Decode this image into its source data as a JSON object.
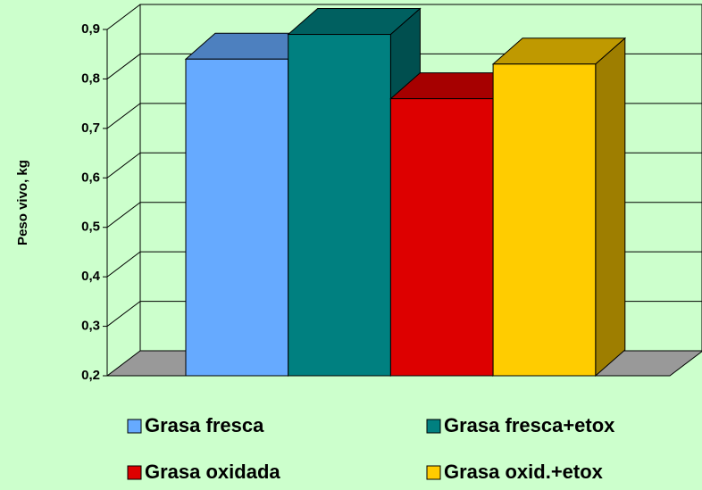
{
  "chart_data": {
    "type": "bar3d",
    "y_label": "Peso vivo, kg",
    "ylim": [
      0.2,
      0.9
    ],
    "yticks": [
      {
        "value": 0.2,
        "label": "0,2"
      },
      {
        "value": 0.3,
        "label": "0,3"
      },
      {
        "value": 0.4,
        "label": "0,4"
      },
      {
        "value": 0.5,
        "label": "0,5"
      },
      {
        "value": 0.6,
        "label": "0,6"
      },
      {
        "value": 0.7,
        "label": "0,7"
      },
      {
        "value": 0.8,
        "label": "0,8"
      },
      {
        "value": 0.9,
        "label": "0,9"
      }
    ],
    "grid": true,
    "series": [
      {
        "name": "Grasa fresca",
        "color": "#66aaff",
        "values": [
          0.84
        ]
      },
      {
        "name": "Grasa fresca+etox",
        "color": "#008080",
        "values": [
          0.89
        ]
      },
      {
        "name": "Grasa oxidada",
        "color": "#dd0000",
        "values": [
          0.76
        ]
      },
      {
        "name": "Grasa oxid.+etox",
        "color": "#ffcc00",
        "values": [
          0.83
        ]
      }
    ]
  }
}
